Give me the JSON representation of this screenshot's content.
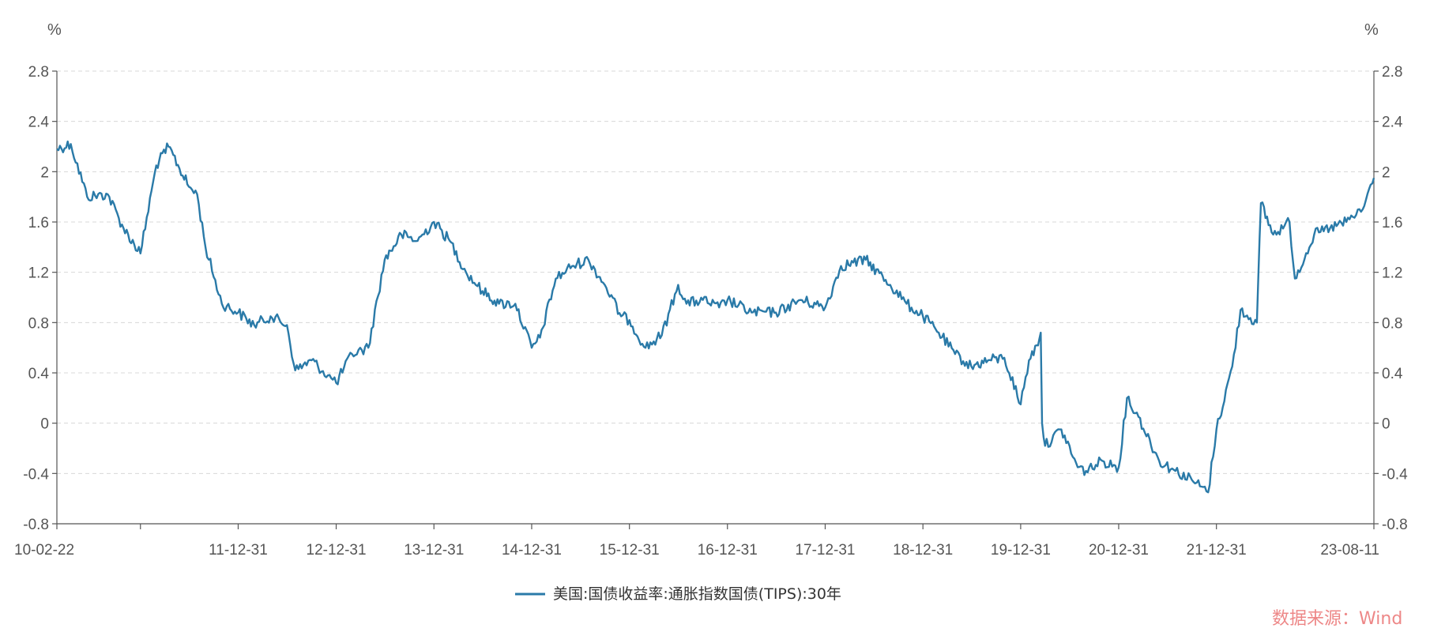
{
  "chart_data": {
    "type": "line",
    "title": "",
    "unit_left": "%",
    "unit_right": "%",
    "ylim": [
      -0.8,
      2.8
    ],
    "yticks": [
      "-0.8",
      "-0.4",
      "0",
      "0.4",
      "0.8",
      "1.2",
      "1.6",
      "2",
      "2.4",
      "2.8"
    ],
    "xlim": [
      "2010-02-22",
      "2023-08-11"
    ],
    "x_tick_labels": [
      "10-02-22",
      "11-12-31",
      "12-12-31",
      "13-12-31",
      "14-12-31",
      "15-12-31",
      "16-12-31",
      "17-12-31",
      "18-12-31",
      "19-12-31",
      "20-12-31",
      "21-12-31",
      "23-08-11"
    ],
    "x_tick_dates": [
      "2010-02-22",
      "2011-12-31",
      "2012-12-31",
      "2013-12-31",
      "2014-12-31",
      "2015-12-31",
      "2016-12-31",
      "2017-12-31",
      "2018-12-31",
      "2019-12-31",
      "2020-12-31",
      "2021-12-31",
      "2023-08-11"
    ],
    "grid": "horizontal dashed",
    "legend_position": "bottom-center",
    "color": "#2a7aa8",
    "series": [
      {
        "name": "美国:国债收益率:通胀指数国债(TIPS):30年",
        "x": [
          "2010-02-22",
          "2010-04-15",
          "2010-06-15",
          "2010-08-31",
          "2010-10-29",
          "2010-12-31",
          "2011-02-28",
          "2011-04-15",
          "2011-06-30",
          "2011-07-31",
          "2011-08-31",
          "2011-10-31",
          "2011-12-31",
          "2012-02-29",
          "2012-04-30",
          "2012-06-30",
          "2012-07-31",
          "2012-09-30",
          "2012-11-30",
          "2012-12-31",
          "2013-02-28",
          "2013-04-30",
          "2013-06-30",
          "2013-08-31",
          "2013-10-31",
          "2013-12-31",
          "2014-02-28",
          "2014-04-30",
          "2014-06-30",
          "2014-08-31",
          "2014-10-31",
          "2014-12-31",
          "2015-01-31",
          "2015-03-31",
          "2015-05-31",
          "2015-07-31",
          "2015-09-30",
          "2015-11-30",
          "2015-12-31",
          "2016-02-29",
          "2016-04-30",
          "2016-06-30",
          "2016-07-31",
          "2016-09-30",
          "2016-11-30",
          "2016-12-31",
          "2017-03-31",
          "2017-06-30",
          "2017-09-30",
          "2017-12-31",
          "2018-02-28",
          "2018-05-31",
          "2018-08-31",
          "2018-10-31",
          "2018-12-31",
          "2019-02-28",
          "2019-04-30",
          "2019-06-30",
          "2019-08-31",
          "2019-10-31",
          "2019-12-31",
          "2020-01-31",
          "2020-02-29",
          "2020-03-15",
          "2020-03-20",
          "2020-03-31",
          "2020-05-31",
          "2020-07-31",
          "2020-08-31",
          "2020-10-31",
          "2020-12-31",
          "2021-01-31",
          "2021-03-15",
          "2021-05-31",
          "2021-07-31",
          "2021-09-30",
          "2021-11-30",
          "2021-12-31",
          "2022-02-28",
          "2022-03-31",
          "2022-05-31",
          "2022-06-15",
          "2022-07-31",
          "2022-09-30",
          "2022-10-20",
          "2022-12-31",
          "2023-02-28",
          "2023-04-30",
          "2023-06-30",
          "2023-08-11"
        ],
        "values": [
          2.18,
          2.22,
          1.8,
          1.82,
          1.55,
          1.35,
          2.05,
          2.2,
          1.88,
          1.82,
          1.4,
          0.95,
          0.88,
          0.78,
          0.85,
          0.78,
          0.42,
          0.5,
          0.38,
          0.32,
          0.55,
          0.6,
          1.3,
          1.5,
          1.45,
          1.6,
          1.45,
          1.2,
          1.05,
          0.95,
          0.95,
          0.6,
          0.68,
          1.15,
          1.25,
          1.3,
          1.1,
          0.85,
          0.82,
          0.6,
          0.7,
          1.1,
          0.95,
          0.98,
          0.92,
          0.98,
          0.88,
          0.88,
          0.98,
          0.92,
          1.25,
          1.3,
          1.1,
          0.95,
          0.85,
          0.72,
          0.55,
          0.45,
          0.5,
          0.52,
          0.15,
          0.5,
          0.62,
          0.72,
          0.0,
          -0.18,
          -0.05,
          -0.35,
          -0.38,
          -0.3,
          -0.35,
          0.2,
          0.05,
          -0.3,
          -0.38,
          -0.45,
          -0.55,
          -0.05,
          0.45,
          0.9,
          0.8,
          1.75,
          1.5,
          1.6,
          1.15,
          1.5,
          1.55,
          1.6,
          1.7,
          1.95
        ]
      }
    ]
  },
  "watermark": "数据来源：Wind"
}
